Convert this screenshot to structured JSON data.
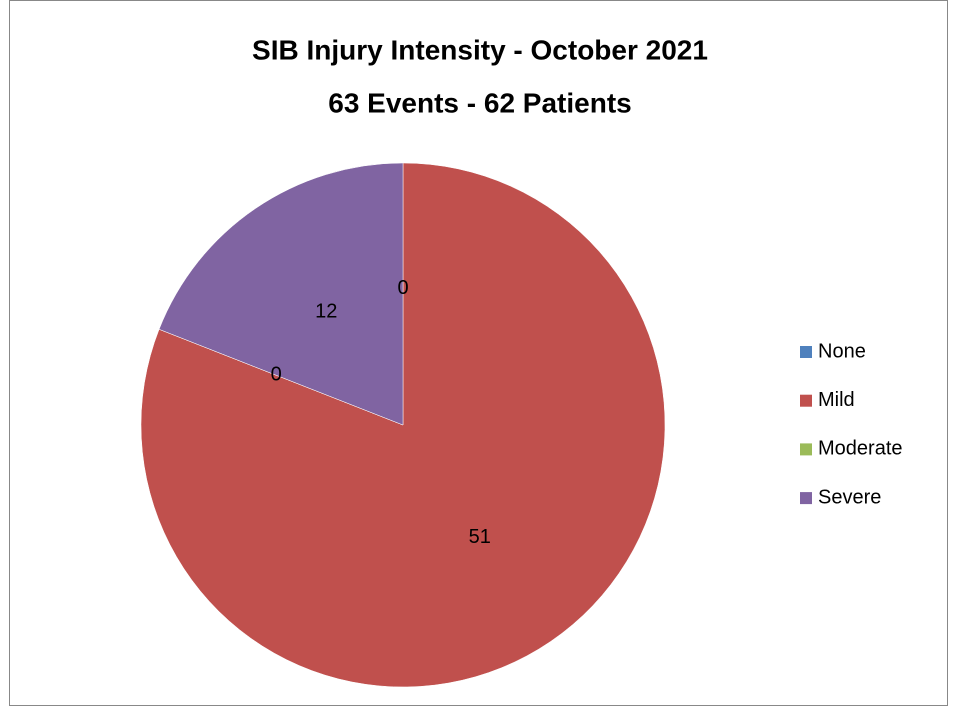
{
  "chart_data": {
    "type": "pie",
    "title": "SIB Injury Intensity - October 2021",
    "subtitle": "63 Events - 62 Patients",
    "categories": [
      "None",
      "Mild",
      "Moderate",
      "Severe"
    ],
    "values": [
      0,
      51,
      0,
      12
    ],
    "colors": [
      "#4f81bd",
      "#c0504d",
      "#9bbb59",
      "#8064a2"
    ],
    "legend": "right"
  }
}
